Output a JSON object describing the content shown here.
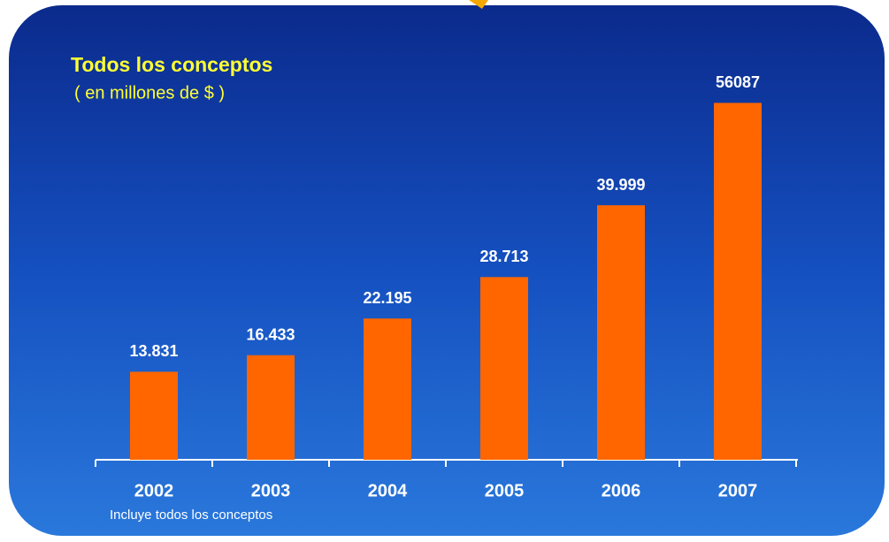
{
  "chart_data": {
    "type": "bar",
    "title": "Todos los conceptos",
    "subtitle": "( en millones de $ )",
    "footnote": "Incluye todos los conceptos",
    "categories": [
      "2002",
      "2003",
      "2004",
      "2005",
      "2006",
      "2007"
    ],
    "values": [
      13831,
      16433,
      22195,
      28713,
      39999,
      56087
    ],
    "value_labels": [
      "13.831",
      "16.433",
      "22.195",
      "28.713",
      "39.999",
      "56087"
    ],
    "color": "#ff6600"
  }
}
